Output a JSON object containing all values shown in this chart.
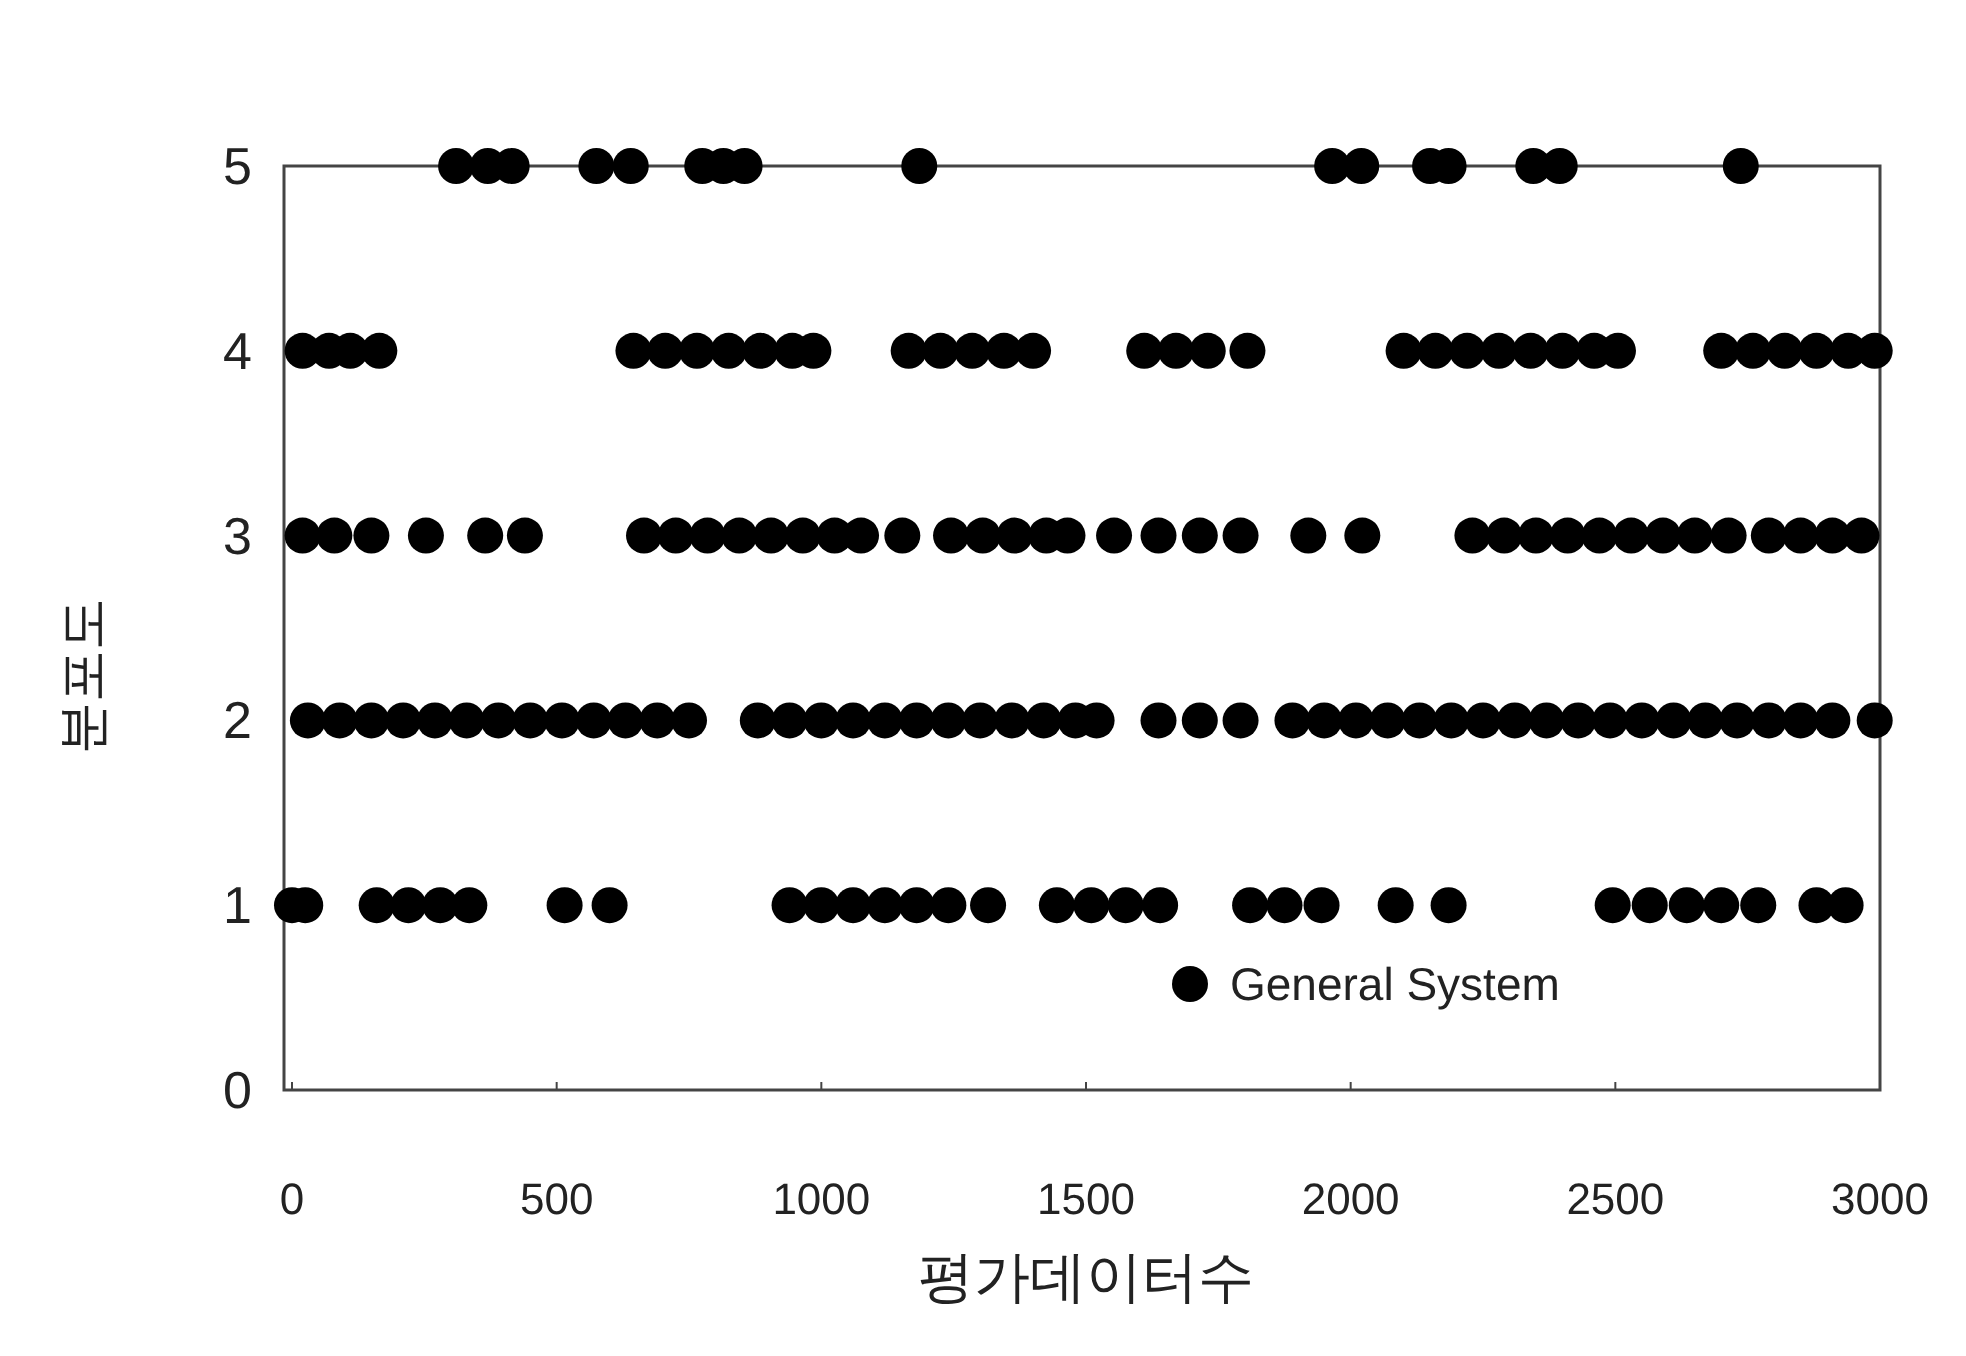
{
  "chart_data": {
    "type": "scatter",
    "xlabel": "평가데이터수",
    "ylabel": "분포도",
    "xlim": [
      0,
      3000
    ],
    "ylim": [
      0,
      5
    ],
    "xticks": [
      0,
      500,
      1000,
      1500,
      2000,
      2500,
      3000
    ],
    "yticks": [
      0,
      1,
      2,
      3,
      4,
      5
    ],
    "legend": "bottom right",
    "marker": "circle",
    "series": [
      {
        "name": "General System",
        "color": "#000000",
        "x": [
          310,
          370,
          415,
          575,
          640,
          775,
          815,
          855,
          1185,
          1965,
          2020,
          2150,
          2185,
          2345,
          2395,
          2737,
          20,
          70,
          110,
          165,
          645,
          705,
          765,
          825,
          885,
          945,
          985,
          1165,
          1225,
          1285,
          1345,
          1400,
          1610,
          1670,
          1730,
          1805,
          2100,
          2160,
          2220,
          2280,
          2340,
          2400,
          2460,
          2505,
          2700,
          2760,
          2820,
          2880,
          2940,
          2990,
          20,
          80,
          150,
          253,
          365,
          440,
          665,
          725,
          785,
          845,
          905,
          965,
          1025,
          1075,
          1153,
          1245,
          1305,
          1365,
          1425,
          1465,
          1553,
          1637,
          1715,
          1792,
          1920,
          2022,
          2230,
          2290,
          2350,
          2410,
          2470,
          2530,
          2590,
          2650,
          2714,
          2790,
          2850,
          2910,
          2965,
          30,
          90,
          150,
          210,
          270,
          330,
          390,
          450,
          510,
          570,
          630,
          690,
          750,
          880,
          940,
          1000,
          1060,
          1120,
          1180,
          1240,
          1300,
          1360,
          1420,
          1480,
          1520,
          1637,
          1715,
          1792,
          1890,
          1950,
          2010,
          2070,
          2130,
          2190,
          2250,
          2310,
          2370,
          2430,
          2490,
          2550,
          2610,
          2670,
          2730,
          2790,
          2850,
          2910,
          2990,
          0,
          25,
          160,
          220,
          280,
          335,
          515,
          600,
          940,
          1000,
          1060,
          1120,
          1180,
          1240,
          1315,
          1445,
          1510,
          1575,
          1640,
          1810,
          1875,
          1945,
          2085,
          2185,
          2495,
          2565,
          2635,
          2700,
          2770,
          2880,
          2935
        ],
        "values": [
          5,
          5,
          5,
          5,
          5,
          5,
          5,
          5,
          5,
          5,
          5,
          5,
          5,
          5,
          5,
          5,
          4,
          4,
          4,
          4,
          4,
          4,
          4,
          4,
          4,
          4,
          4,
          4,
          4,
          4,
          4,
          4,
          4,
          4,
          4,
          4,
          4,
          4,
          4,
          4,
          4,
          4,
          4,
          4,
          4,
          4,
          4,
          4,
          4,
          4,
          3,
          3,
          3,
          3,
          3,
          3,
          3,
          3,
          3,
          3,
          3,
          3,
          3,
          3,
          3,
          3,
          3,
          3,
          3,
          3,
          3,
          3,
          3,
          3,
          3,
          3,
          3,
          3,
          3,
          3,
          3,
          3,
          3,
          3,
          3,
          3,
          3,
          3,
          3,
          2,
          2,
          2,
          2,
          2,
          2,
          2,
          2,
          2,
          2,
          2,
          2,
          2,
          2,
          2,
          2,
          2,
          2,
          2,
          2,
          2,
          2,
          2,
          2,
          2,
          2,
          2,
          2,
          2,
          2,
          2,
          2,
          2,
          2,
          2,
          2,
          2,
          2,
          2,
          2,
          2,
          2,
          2,
          2,
          2,
          2,
          2,
          1,
          1,
          1,
          1,
          1,
          1,
          1,
          1,
          1,
          1,
          1,
          1,
          1,
          1,
          1,
          1,
          1,
          1,
          1,
          1,
          1,
          1,
          1,
          1,
          1,
          1,
          1,
          1,
          1,
          1,
          1
        ]
      }
    ]
  }
}
